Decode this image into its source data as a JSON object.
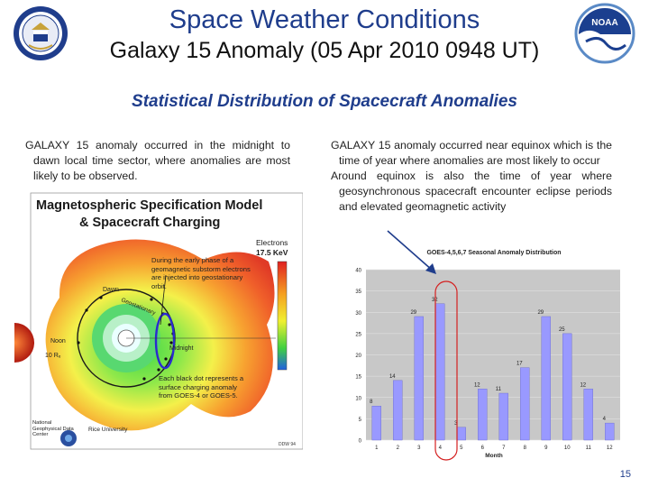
{
  "header": {
    "title": "Space Weather Conditions",
    "subtitle": "Galaxy 15 Anomaly (05 Apr 2010 0948 UT)",
    "section_title": "Statistical Distribution of Spacecraft Anomalies"
  },
  "left_text": "GALAXY 15 anomaly occurred in the midnight to dawn local time sector, where anomalies are most likely to be observed.",
  "right_text": [
    "GALAXY 15 anomaly occurred near equinox which is the time of year where anomalies are most likely to occur",
    "Around equinox is also the time of year where geosynchronous spacecraft encounter eclipse periods and elevated geomagnetic activity"
  ],
  "map_figure": {
    "title_line1": "Magnetospheric Specification Model",
    "title_line2": "& Spacecraft Charging",
    "legend_label": "Electrons",
    "legend_energy": "17.5 KeV",
    "annotation1": "During the early phase of a geomagnetic substorm electrons are injected into geostationary orbit.",
    "annotation2": "Each black dot represents a surface charging anomaly from GOES-4 or GOES-5.",
    "label_dawn": "Dawn",
    "label_noon": "Noon",
    "label_midnight": "Midnight",
    "label_re": "10 Rₑ",
    "label_orbit": "Geostationary",
    "credit_left": "National Geophysical Data Center",
    "credit_right": "Rice University",
    "credit_corner": "DDW 94"
  },
  "chart_data": {
    "type": "bar",
    "title": "GOES-4,5,6,7 Seasonal Anomaly Distribution",
    "xlabel": "Month",
    "ylabel": "",
    "categories": [
      "1",
      "2",
      "3",
      "4",
      "5",
      "6",
      "7",
      "8",
      "9",
      "10",
      "11",
      "12"
    ],
    "values": [
      8,
      14,
      29,
      32,
      3,
      12,
      11,
      17,
      29,
      25,
      12,
      4
    ],
    "ylim": [
      0,
      40
    ],
    "yticks": [
      0,
      5,
      10,
      15,
      20,
      25,
      30,
      35,
      40
    ],
    "bar_color": "#9999ff",
    "grid": true
  },
  "page_number": "15",
  "colors": {
    "title": "#1f3d8c",
    "highlight": "#cc0000",
    "arrow": "#1f3d8c"
  },
  "icons": {
    "left_logo": "department-of-commerce-seal",
    "right_logo": "noaa-logo"
  }
}
